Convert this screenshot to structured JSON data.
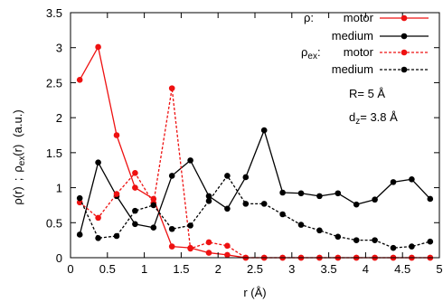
{
  "chart_data": {
    "type": "line",
    "xlabel": "r (Å)",
    "ylabel": "ρ(r) ; ρex(r) (a.u.)",
    "xlim": [
      0,
      5
    ],
    "ylim": [
      0,
      3.5
    ],
    "x_ticks": [
      0,
      0.5,
      1,
      1.5,
      2,
      2.5,
      3,
      3.5,
      4,
      4.5,
      5
    ],
    "y_ticks": [
      0,
      0.5,
      1,
      1.5,
      2,
      2.5,
      3,
      3.5
    ],
    "x_tick_labels": [
      "0",
      "0.5",
      "1",
      "1.5",
      "2",
      "2.5",
      "3",
      "3.5",
      "4",
      "4.5",
      "5"
    ],
    "y_tick_labels": [
      "0",
      "0.5",
      "1",
      "1.5",
      "2",
      "2.5",
      "3",
      "3.5"
    ],
    "grid": false,
    "legend_position": "top-right",
    "legend": {
      "rho_prefix": "ρ:",
      "rho_ex_prefix": "ρ",
      "rho_ex_sub": "ex",
      "rho_ex_colon": ":"
    },
    "annotations": {
      "R": "R= 5 Å",
      "dz_main": "d",
      "dz_sub": "z",
      "dz_value": "= 3.8 Å"
    },
    "series": [
      {
        "name": "motor",
        "group": "ρ",
        "color": "#ee1111",
        "dash": "solid",
        "x": [
          0.125,
          0.375,
          0.625,
          0.875,
          1.125,
          1.375,
          1.625,
          1.875,
          2.125,
          2.375,
          2.625,
          2.875,
          3.125,
          3.375,
          3.625,
          3.875,
          4.125,
          4.375,
          4.625,
          4.875
        ],
        "y": [
          2.54,
          3.01,
          1.75,
          1.0,
          0.84,
          0.16,
          0.14,
          0.07,
          0.04,
          0.0,
          0.0,
          0.0,
          0.0,
          0.0,
          0.0,
          0.0,
          0.0,
          0.0,
          0.0,
          0.0
        ]
      },
      {
        "name": "medium",
        "group": "ρ",
        "color": "#000000",
        "dash": "solid",
        "x": [
          0.125,
          0.375,
          0.625,
          0.875,
          1.125,
          1.375,
          1.625,
          1.875,
          2.125,
          2.375,
          2.625,
          2.875,
          3.125,
          3.375,
          3.625,
          3.875,
          4.125,
          4.375,
          4.625,
          4.875
        ],
        "y": [
          0.33,
          1.36,
          0.88,
          0.48,
          0.43,
          1.17,
          1.39,
          0.88,
          0.7,
          1.15,
          1.82,
          0.93,
          0.92,
          0.88,
          0.92,
          0.76,
          0.83,
          1.08,
          1.12,
          0.84
        ]
      },
      {
        "name": "motor",
        "group": "ρex",
        "color": "#ee1111",
        "dash": "dashed",
        "x": [
          0.125,
          0.375,
          0.625,
          0.875,
          1.125,
          1.375,
          1.625,
          1.875,
          2.125,
          2.375,
          2.625,
          2.875,
          3.125,
          3.375,
          3.625,
          3.875,
          4.125,
          4.375,
          4.625,
          4.875
        ],
        "y": [
          0.79,
          0.57,
          0.91,
          1.21,
          0.78,
          2.42,
          0.13,
          0.22,
          0.17,
          0.0,
          0.0,
          0.0,
          0.0,
          0.0,
          0.0,
          0.0,
          0.0,
          0.0,
          0.0,
          0.0
        ]
      },
      {
        "name": "medium",
        "group": "ρex",
        "color": "#000000",
        "dash": "dashed",
        "x": [
          0.125,
          0.375,
          0.625,
          0.875,
          1.125,
          1.375,
          1.625,
          1.875,
          2.125,
          2.375,
          2.625,
          2.875,
          3.125,
          3.375,
          3.625,
          3.875,
          4.125,
          4.375,
          4.625,
          4.875
        ],
        "y": [
          0.85,
          0.28,
          0.31,
          0.67,
          0.75,
          0.41,
          0.46,
          0.81,
          1.17,
          0.77,
          0.77,
          0.62,
          0.47,
          0.39,
          0.3,
          0.25,
          0.25,
          0.14,
          0.16,
          0.23
        ]
      }
    ]
  }
}
